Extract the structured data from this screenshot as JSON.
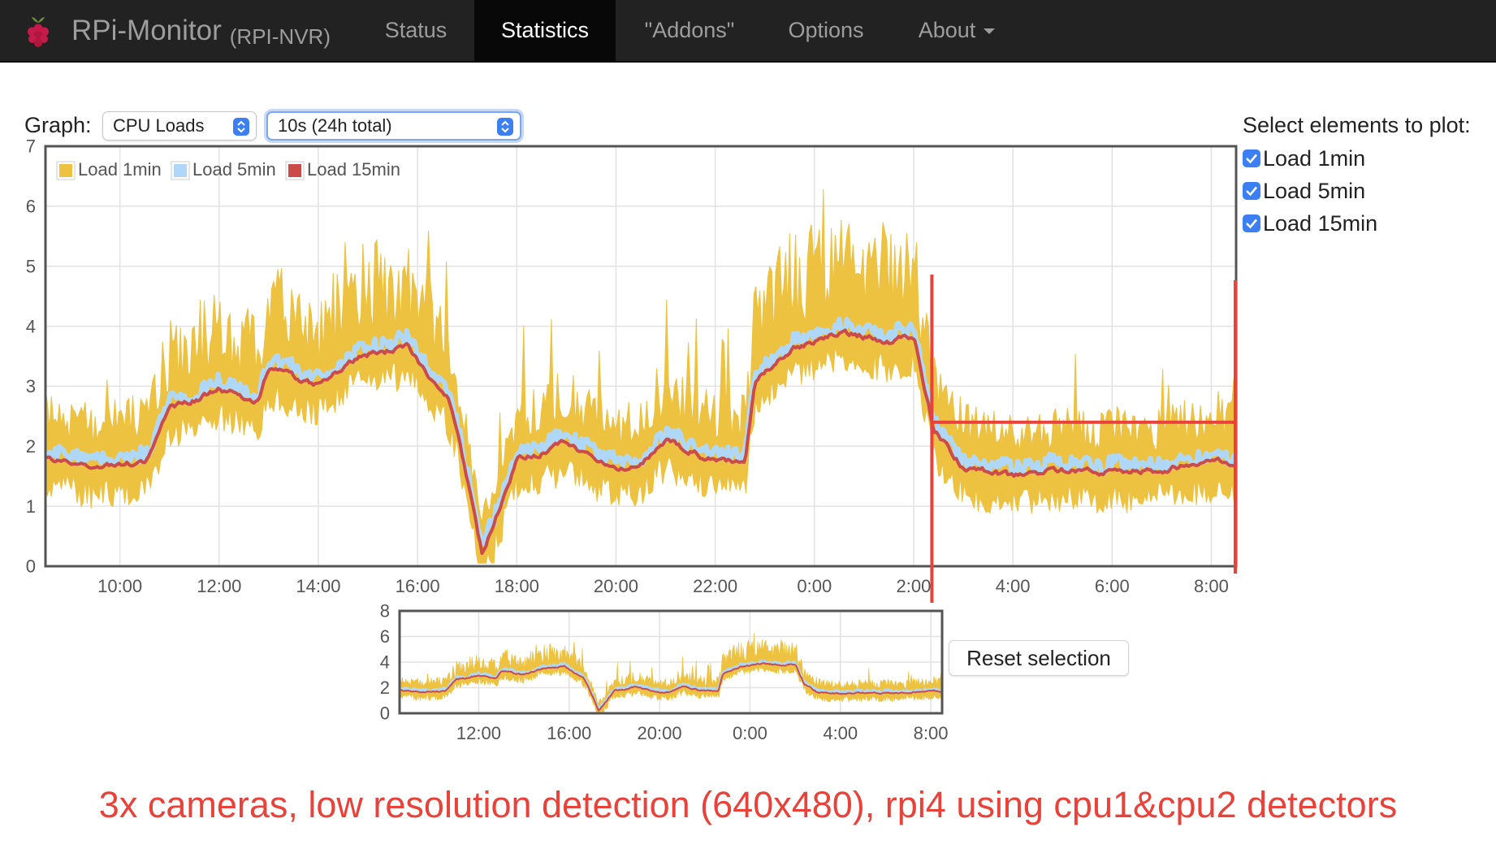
{
  "navbar": {
    "brand": "RPi-Monitor",
    "host": "(RPI-NVR)",
    "items": [
      {
        "label": "Status",
        "active": false
      },
      {
        "label": "Statistics",
        "active": true
      },
      {
        "label": "\"Addons\"",
        "active": false
      },
      {
        "label": "Options",
        "active": false
      },
      {
        "label": "About",
        "active": false,
        "dropdown": true
      }
    ]
  },
  "controls": {
    "graph_label": "Graph:",
    "graph_select": "CPU Loads",
    "range_select": "10s (24h total)"
  },
  "plot_panel": {
    "title": "Select elements to plot:",
    "options": [
      {
        "label": "Load 1min",
        "checked": true
      },
      {
        "label": "Load 5min",
        "checked": true
      },
      {
        "label": "Load 15min",
        "checked": true
      }
    ]
  },
  "chart_data": [
    {
      "type": "area",
      "ylim": [
        0,
        7
      ],
      "y_ticks": [
        0,
        1,
        2,
        3,
        4,
        5,
        6,
        7
      ],
      "x_ticks": [
        "10:00",
        "12:00",
        "14:00",
        "16:00",
        "18:00",
        "20:00",
        "22:00",
        "0:00",
        "2:00",
        "4:00",
        "6:00",
        "8:00"
      ],
      "xlim_hours": [
        8.5,
        32.5
      ],
      "legend_position": "top-left",
      "series": [
        {
          "name": "Load 1min",
          "color": "#edc240"
        },
        {
          "name": "Load 5min",
          "color": "#afd8f8"
        },
        {
          "name": "Load 15min",
          "color": "#cb4b4b"
        }
      ],
      "profile_hours": [
        8.5,
        9.5,
        10.5,
        11.0,
        12.0,
        12.8,
        13.0,
        14.0,
        14.8,
        15.8,
        16.6,
        16.8,
        17.3,
        18.0,
        19.0,
        20.0,
        20.5,
        21.0,
        22.0,
        22.6,
        22.8,
        23.5,
        24.5,
        25.5,
        26.0,
        26.4,
        27.0,
        28.0,
        29.0,
        30.0,
        31.0,
        32.0,
        32.5
      ],
      "load15_profile": [
        1.8,
        1.65,
        1.75,
        2.6,
        2.95,
        2.75,
        3.3,
        3.0,
        3.5,
        3.65,
        2.8,
        2.3,
        0.2,
        1.75,
        2.05,
        1.6,
        1.7,
        2.1,
        1.75,
        1.75,
        3.1,
        3.6,
        3.9,
        3.75,
        3.85,
        2.3,
        1.65,
        1.5,
        1.6,
        1.55,
        1.6,
        1.75,
        1.7
      ],
      "annotations": {
        "vertical_markers_hours": [
          26.4,
          32.8
        ],
        "horizontal_marker_value": 2.4
      }
    },
    {
      "type": "area",
      "role": "overview",
      "ylim": [
        0,
        8
      ],
      "y_ticks": [
        0,
        2,
        4,
        6,
        8
      ],
      "x_ticks": [
        "12:00",
        "16:00",
        "20:00",
        "0:00",
        "4:00",
        "8:00"
      ]
    }
  ],
  "reset_button": "Reset selection",
  "caption": "3x cameras, low resolution detection (640x480), rpi4 using cpu1&cpu2 detectors",
  "colors": {
    "navbar": "#222222",
    "accent": "#3b7ff2",
    "annotation": "#e8423a"
  }
}
